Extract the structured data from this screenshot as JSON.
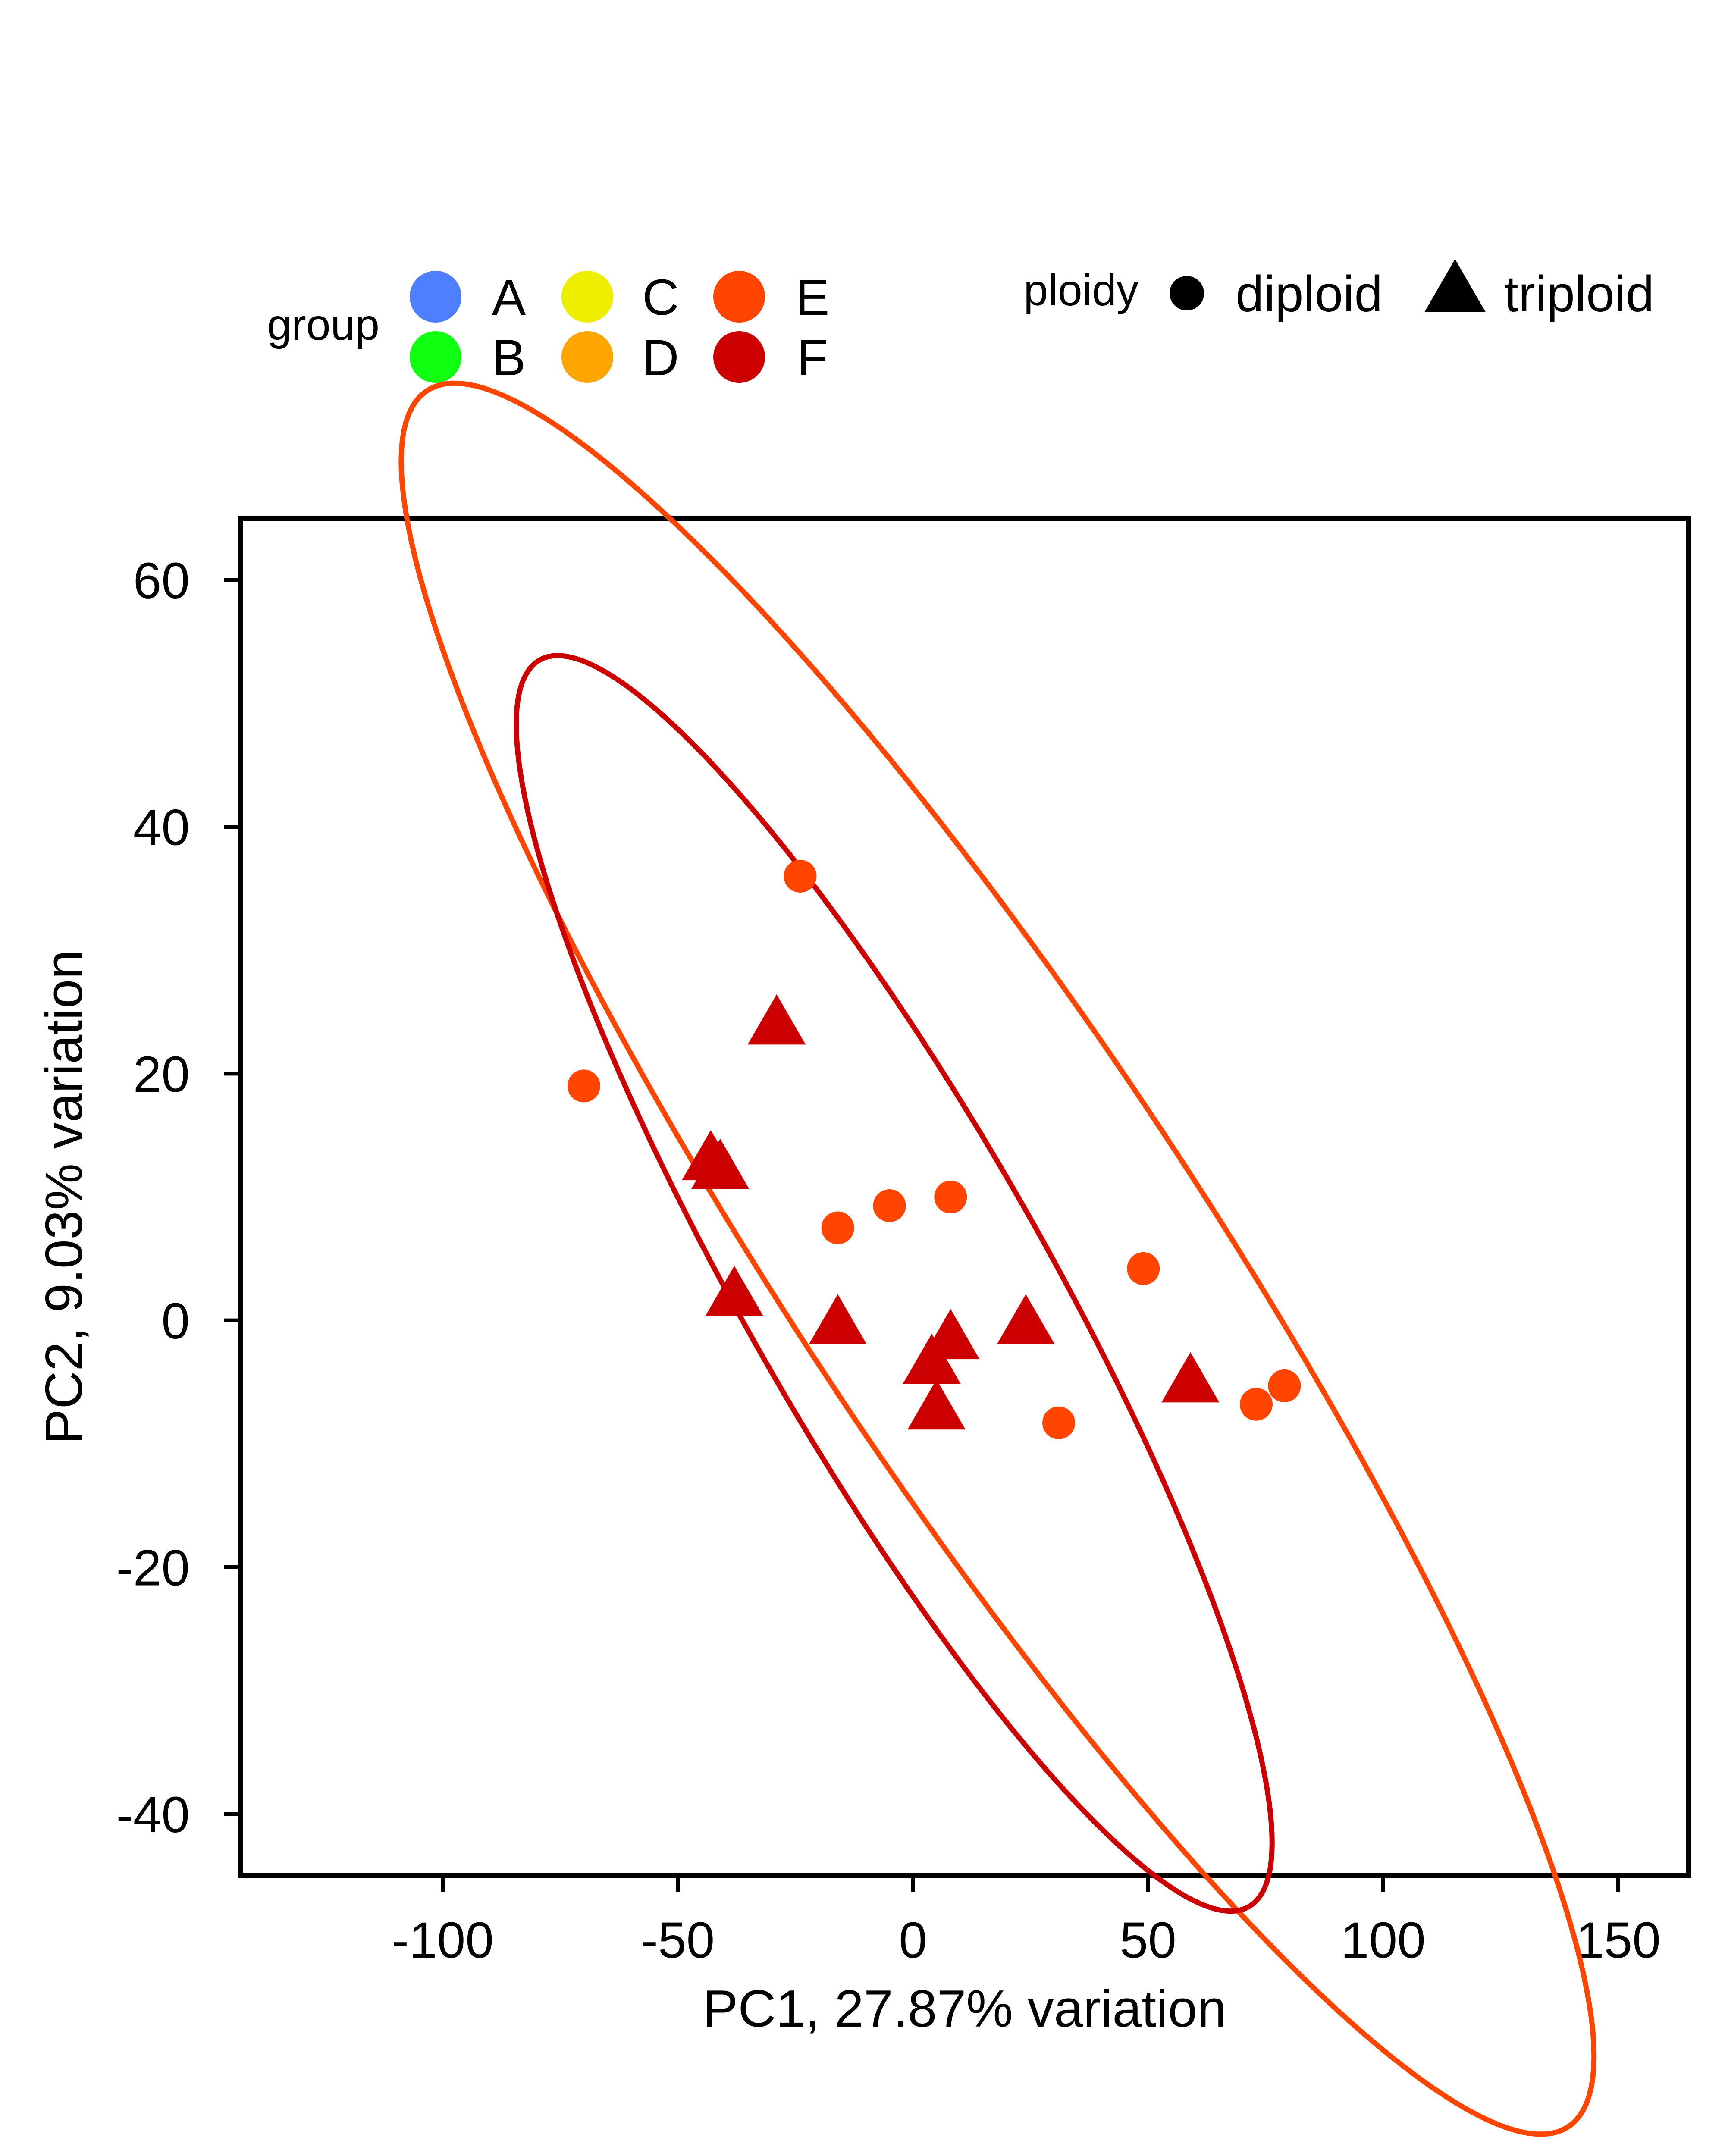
{
  "chart_data": {
    "type": "scatter",
    "xlabel": "PC1, 27.87% variation",
    "ylabel": "PC2, 9.03% variation",
    "xlim": [
      -143,
      165
    ],
    "ylim": [
      -45,
      65
    ],
    "x_ticks": [
      -100,
      -50,
      0,
      50,
      100,
      150
    ],
    "y_ticks": [
      -40,
      -20,
      0,
      20,
      40,
      60
    ],
    "x_tick_labels": [
      "-100",
      "-50",
      "0",
      "50",
      "100",
      "150"
    ],
    "y_tick_labels": [
      "-40",
      "-20",
      "0",
      "20",
      "40",
      "60"
    ],
    "grid": false,
    "legend": {
      "placement": "top",
      "group_title": "group",
      "ploidy_title": "ploidy",
      "groups": [
        {
          "label": "A",
          "color": "#4F7FFF"
        },
        {
          "label": "B",
          "color": "#11FF11"
        },
        {
          "label": "C",
          "color": "#EEEE00"
        },
        {
          "label": "D",
          "color": "#FFA500"
        },
        {
          "label": "E",
          "color": "#FF4500"
        },
        {
          "label": "F",
          "color": "#CC0000"
        }
      ],
      "ploidy": [
        {
          "label": "diploid",
          "shape": "circle"
        },
        {
          "label": "triploid",
          "shape": "triangle"
        }
      ]
    },
    "series": [
      {
        "name": "E",
        "color": "#FF4500",
        "shape": "circle",
        "points": [
          {
            "x": -24,
            "y": 36
          },
          {
            "x": -70,
            "y": 19
          },
          {
            "x": -16,
            "y": 7.5
          },
          {
            "x": -5,
            "y": 9.3
          },
          {
            "x": 8,
            "y": 10
          },
          {
            "x": 49,
            "y": 4.2
          },
          {
            "x": 31,
            "y": -8.3
          },
          {
            "x": 73,
            "y": -6.8
          },
          {
            "x": 79,
            "y": -5.3
          }
        ]
      },
      {
        "name": "F",
        "color": "#CC0000",
        "shape": "triangle",
        "points": [
          {
            "x": -29,
            "y": 24
          },
          {
            "x": -43,
            "y": 13
          },
          {
            "x": -41,
            "y": 12.3
          },
          {
            "x": -38,
            "y": 2
          },
          {
            "x": -16,
            "y": -0.3
          },
          {
            "x": 8,
            "y": -1.5
          },
          {
            "x": 4,
            "y": -3.5
          },
          {
            "x": 5,
            "y": -7.2
          },
          {
            "x": 24,
            "y": -0.3
          },
          {
            "x": 59,
            "y": -5
          }
        ]
      }
    ],
    "ellipses": [
      {
        "name": "E",
        "color": "#FF4500",
        "cx": 18,
        "cy": 5,
        "semi_major": 143,
        "semi_minor": 26,
        "angle_deg": -28
      },
      {
        "name": "F",
        "color": "#CC0000",
        "cx": -4,
        "cy": 3,
        "semi_major": 93,
        "semi_minor": 20,
        "angle_deg": -31
      }
    ]
  }
}
